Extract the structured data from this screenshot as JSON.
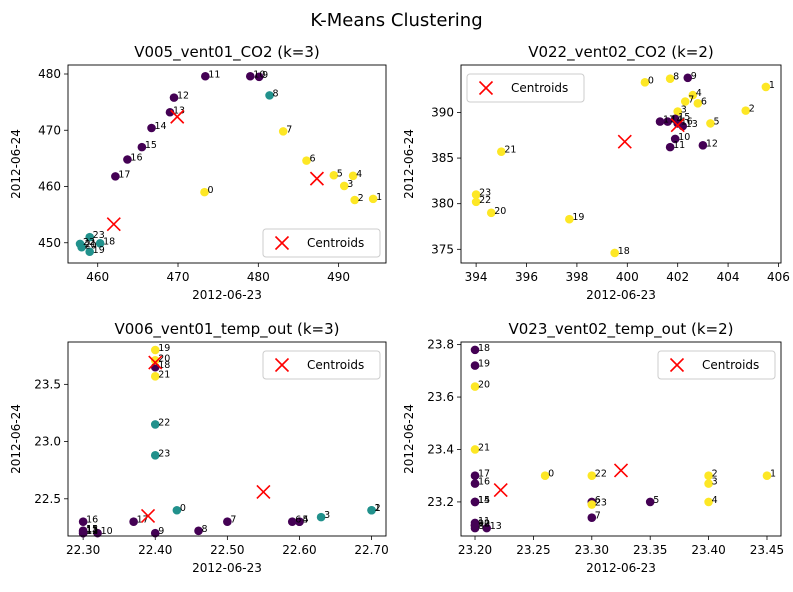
{
  "figure": {
    "title": "K-Means Clustering"
  },
  "colors": {
    "c0": "#440154",
    "c1": "#21918c",
    "c2": "#fde725",
    "centroid": "#ff0000"
  },
  "legend_label": "Centroids",
  "chart_data": [
    {
      "type": "scatter",
      "title": "V005_vent01_CO2 (k=3)",
      "xlabel": "2012-06-23",
      "ylabel": "2012-06-24",
      "xlim": [
        456.3,
        495.9
      ],
      "ylim": [
        446.4,
        481.6
      ],
      "xticks": [
        460,
        470,
        480,
        490
      ],
      "yticks": [
        450,
        460,
        470,
        480
      ],
      "legend_loc": "lower right",
      "points": [
        {
          "label": "0",
          "x": 473.3,
          "y": 459.0,
          "cluster": 2
        },
        {
          "label": "1",
          "x": 494.3,
          "y": 457.8,
          "cluster": 2
        },
        {
          "label": "2",
          "x": 492.0,
          "y": 457.6,
          "cluster": 2
        },
        {
          "label": "3",
          "x": 490.7,
          "y": 460.1,
          "cluster": 2
        },
        {
          "label": "4",
          "x": 491.8,
          "y": 461.9,
          "cluster": 2
        },
        {
          "label": "5",
          "x": 489.4,
          "y": 462.0,
          "cluster": 2
        },
        {
          "label": "6",
          "x": 486.0,
          "y": 464.6,
          "cluster": 2
        },
        {
          "label": "7",
          "x": 483.1,
          "y": 469.8,
          "cluster": 2
        },
        {
          "label": "8",
          "x": 481.4,
          "y": 476.2,
          "cluster": 1
        },
        {
          "label": "9",
          "x": 480.1,
          "y": 479.5,
          "cluster": 0
        },
        {
          "label": "10",
          "x": 479.0,
          "y": 479.6,
          "cluster": 0
        },
        {
          "label": "11",
          "x": 473.4,
          "y": 479.6,
          "cluster": 0
        },
        {
          "label": "12",
          "x": 469.5,
          "y": 475.8,
          "cluster": 0
        },
        {
          "label": "13",
          "x": 469.0,
          "y": 473.2,
          "cluster": 0
        },
        {
          "label": "14",
          "x": 466.7,
          "y": 470.4,
          "cluster": 0
        },
        {
          "label": "15",
          "x": 465.5,
          "y": 467.0,
          "cluster": 0
        },
        {
          "label": "16",
          "x": 463.7,
          "y": 464.8,
          "cluster": 0
        },
        {
          "label": "17",
          "x": 462.2,
          "y": 461.8,
          "cluster": 0
        },
        {
          "label": "18",
          "x": 460.3,
          "y": 449.9,
          "cluster": 1
        },
        {
          "label": "19",
          "x": 459.0,
          "y": 448.4,
          "cluster": 1
        },
        {
          "label": "20",
          "x": 458.0,
          "y": 449.2,
          "cluster": 1
        },
        {
          "label": "21",
          "x": 458.0,
          "y": 449.4,
          "cluster": 1
        },
        {
          "label": "22",
          "x": 457.8,
          "y": 449.8,
          "cluster": 1
        },
        {
          "label": "23",
          "x": 459.0,
          "y": 451.0,
          "cluster": 1
        }
      ],
      "centroids": [
        {
          "x": 469.9,
          "y": 472.4
        },
        {
          "x": 462.0,
          "y": 453.3
        },
        {
          "x": 487.3,
          "y": 461.4
        }
      ]
    },
    {
      "type": "scatter",
      "title": "V022_vent02_CO2 (k=2)",
      "xlabel": "2012-06-23",
      "ylabel": "2012-06-24",
      "xlim": [
        393.4,
        406.1
      ],
      "ylim": [
        373.5,
        395.2
      ],
      "xticks": [
        394,
        396,
        398,
        400,
        402,
        404,
        406
      ],
      "yticks": [
        375,
        380,
        385,
        390
      ],
      "legend_loc": "upper left",
      "points": [
        {
          "label": "0",
          "x": 400.7,
          "y": 393.3,
          "cluster": 2
        },
        {
          "label": "1",
          "x": 405.5,
          "y": 392.8,
          "cluster": 2
        },
        {
          "label": "2",
          "x": 404.7,
          "y": 390.2,
          "cluster": 2
        },
        {
          "label": "3",
          "x": 402.0,
          "y": 390.1,
          "cluster": 2
        },
        {
          "label": "4",
          "x": 402.6,
          "y": 391.9,
          "cluster": 2
        },
        {
          "label": "5",
          "x": 403.3,
          "y": 388.8,
          "cluster": 2
        },
        {
          "label": "6",
          "x": 402.8,
          "y": 391.0,
          "cluster": 2
        },
        {
          "label": "7",
          "x": 402.3,
          "y": 391.2,
          "cluster": 2
        },
        {
          "label": "8",
          "x": 401.7,
          "y": 393.7,
          "cluster": 2
        },
        {
          "label": "9",
          "x": 402.4,
          "y": 393.8,
          "cluster": 0
        },
        {
          "label": "10",
          "x": 401.9,
          "y": 387.1,
          "cluster": 0
        },
        {
          "label": "11",
          "x": 401.7,
          "y": 386.2,
          "cluster": 0
        },
        {
          "label": "12",
          "x": 403.0,
          "y": 386.4,
          "cluster": 0
        },
        {
          "label": "13",
          "x": 402.2,
          "y": 388.5,
          "cluster": 0
        },
        {
          "label": "14",
          "x": 401.6,
          "y": 389.0,
          "cluster": 0
        },
        {
          "label": "15",
          "x": 401.9,
          "y": 389.3,
          "cluster": 0
        },
        {
          "label": "16",
          "x": 402.0,
          "y": 388.8,
          "cluster": 0
        },
        {
          "label": "17",
          "x": 401.3,
          "y": 389.0,
          "cluster": 0
        },
        {
          "label": "18",
          "x": 399.5,
          "y": 374.6,
          "cluster": 2
        },
        {
          "label": "19",
          "x": 397.7,
          "y": 378.3,
          "cluster": 2
        },
        {
          "label": "20",
          "x": 394.6,
          "y": 379.0,
          "cluster": 2
        },
        {
          "label": "21",
          "x": 395.0,
          "y": 385.7,
          "cluster": 2
        },
        {
          "label": "22",
          "x": 394.0,
          "y": 380.2,
          "cluster": 2
        },
        {
          "label": "23",
          "x": 394.0,
          "y": 381.0,
          "cluster": 2
        }
      ],
      "centroids": [
        {
          "x": 402.0,
          "y": 388.6
        },
        {
          "x": 399.9,
          "y": 386.8
        }
      ]
    },
    {
      "type": "scatter",
      "title": "V006_vent01_temp_out (k=3)",
      "xlabel": "2012-06-23",
      "ylabel": "2012-06-24",
      "xlim": [
        22.279,
        22.72
      ],
      "ylim": [
        22.175,
        23.87
      ],
      "xticks": [
        22.3,
        22.4,
        22.5,
        22.6,
        22.7
      ],
      "yticks": [
        22.5,
        23.0,
        23.5
      ],
      "legend_loc": "upper right",
      "points": [
        {
          "label": "0",
          "x": 22.43,
          "y": 22.4,
          "cluster": 1
        },
        {
          "label": "1",
          "x": 22.7,
          "y": 22.4,
          "cluster": 1
        },
        {
          "label": "2",
          "x": 22.7,
          "y": 22.4,
          "cluster": 1
        },
        {
          "label": "3",
          "x": 22.63,
          "y": 22.34,
          "cluster": 1
        },
        {
          "label": "4",
          "x": 22.6,
          "y": 22.3,
          "cluster": 0
        },
        {
          "label": "5",
          "x": 22.6,
          "y": 22.3,
          "cluster": 0
        },
        {
          "label": "6",
          "x": 22.59,
          "y": 22.3,
          "cluster": 0
        },
        {
          "label": "7",
          "x": 22.5,
          "y": 22.3,
          "cluster": 0
        },
        {
          "label": "8",
          "x": 22.46,
          "y": 22.22,
          "cluster": 0
        },
        {
          "label": "9",
          "x": 22.4,
          "y": 22.2,
          "cluster": 0
        },
        {
          "label": "10",
          "x": 22.32,
          "y": 22.2,
          "cluster": 0
        },
        {
          "label": "11",
          "x": 22.3,
          "y": 22.21,
          "cluster": 0
        },
        {
          "label": "12",
          "x": 22.3,
          "y": 22.2,
          "cluster": 0
        },
        {
          "label": "13",
          "x": 22.3,
          "y": 22.22,
          "cluster": 0
        },
        {
          "label": "14",
          "x": 22.3,
          "y": 22.2,
          "cluster": 0
        },
        {
          "label": "15",
          "x": 22.3,
          "y": 22.22,
          "cluster": 0
        },
        {
          "label": "16",
          "x": 22.3,
          "y": 22.3,
          "cluster": 0
        },
        {
          "label": "17",
          "x": 22.37,
          "y": 22.3,
          "cluster": 0
        },
        {
          "label": "18",
          "x": 22.4,
          "y": 23.65,
          "cluster": 0
        },
        {
          "label": "19",
          "x": 22.4,
          "y": 23.8,
          "cluster": 2
        },
        {
          "label": "20",
          "x": 22.4,
          "y": 23.71,
          "cluster": 2
        },
        {
          "label": "21",
          "x": 22.4,
          "y": 23.57,
          "cluster": 2
        },
        {
          "label": "22",
          "x": 22.4,
          "y": 23.15,
          "cluster": 1
        },
        {
          "label": "23",
          "x": 22.4,
          "y": 22.88,
          "cluster": 1
        }
      ],
      "centroids": [
        {
          "x": 22.39,
          "y": 22.35
        },
        {
          "x": 22.55,
          "y": 22.56
        },
        {
          "x": 22.4,
          "y": 23.69
        }
      ]
    },
    {
      "type": "scatter",
      "title": "V023_vent02_temp_out (k=2)",
      "xlabel": "2012-06-23",
      "ylabel": "2012-06-24",
      "xlim": [
        23.188,
        23.462
      ],
      "ylim": [
        23.07,
        23.81
      ],
      "xticks": [
        23.2,
        23.25,
        23.3,
        23.35,
        23.4,
        23.45
      ],
      "yticks": [
        23.2,
        23.4,
        23.6,
        23.8
      ],
      "legend_loc": "upper right",
      "points": [
        {
          "label": "0",
          "x": 23.26,
          "y": 23.3,
          "cluster": 2
        },
        {
          "label": "1",
          "x": 23.45,
          "y": 23.3,
          "cluster": 2
        },
        {
          "label": "2",
          "x": 23.4,
          "y": 23.3,
          "cluster": 2
        },
        {
          "label": "3",
          "x": 23.4,
          "y": 23.27,
          "cluster": 2
        },
        {
          "label": "4",
          "x": 23.4,
          "y": 23.2,
          "cluster": 2
        },
        {
          "label": "5",
          "x": 23.35,
          "y": 23.2,
          "cluster": 0
        },
        {
          "label": "6",
          "x": 23.3,
          "y": 23.2,
          "cluster": 0
        },
        {
          "label": "7",
          "x": 23.3,
          "y": 23.14,
          "cluster": 0
        },
        {
          "label": "8",
          "x": 23.2,
          "y": 23.1,
          "cluster": 0
        },
        {
          "label": "9",
          "x": 23.2,
          "y": 23.11,
          "cluster": 0
        },
        {
          "label": "10",
          "x": 23.2,
          "y": 23.11,
          "cluster": 0
        },
        {
          "label": "11",
          "x": 23.2,
          "y": 23.12,
          "cluster": 0
        },
        {
          "label": "12",
          "x": 23.2,
          "y": 23.11,
          "cluster": 0
        },
        {
          "label": "13",
          "x": 23.21,
          "y": 23.1,
          "cluster": 0
        },
        {
          "label": "14",
          "x": 23.2,
          "y": 23.2,
          "cluster": 0
        },
        {
          "label": "15",
          "x": 23.2,
          "y": 23.2,
          "cluster": 0
        },
        {
          "label": "16",
          "x": 23.2,
          "y": 23.27,
          "cluster": 0
        },
        {
          "label": "17",
          "x": 23.2,
          "y": 23.3,
          "cluster": 0
        },
        {
          "label": "18",
          "x": 23.2,
          "y": 23.78,
          "cluster": 0
        },
        {
          "label": "19",
          "x": 23.2,
          "y": 23.72,
          "cluster": 0
        },
        {
          "label": "20",
          "x": 23.2,
          "y": 23.64,
          "cluster": 2
        },
        {
          "label": "21",
          "x": 23.2,
          "y": 23.4,
          "cluster": 2
        },
        {
          "label": "22",
          "x": 23.3,
          "y": 23.3,
          "cluster": 2
        },
        {
          "label": "23",
          "x": 23.3,
          "y": 23.19,
          "cluster": 2
        }
      ],
      "centroids": [
        {
          "x": 23.222,
          "y": 23.245
        },
        {
          "x": 23.325,
          "y": 23.32
        }
      ]
    }
  ]
}
